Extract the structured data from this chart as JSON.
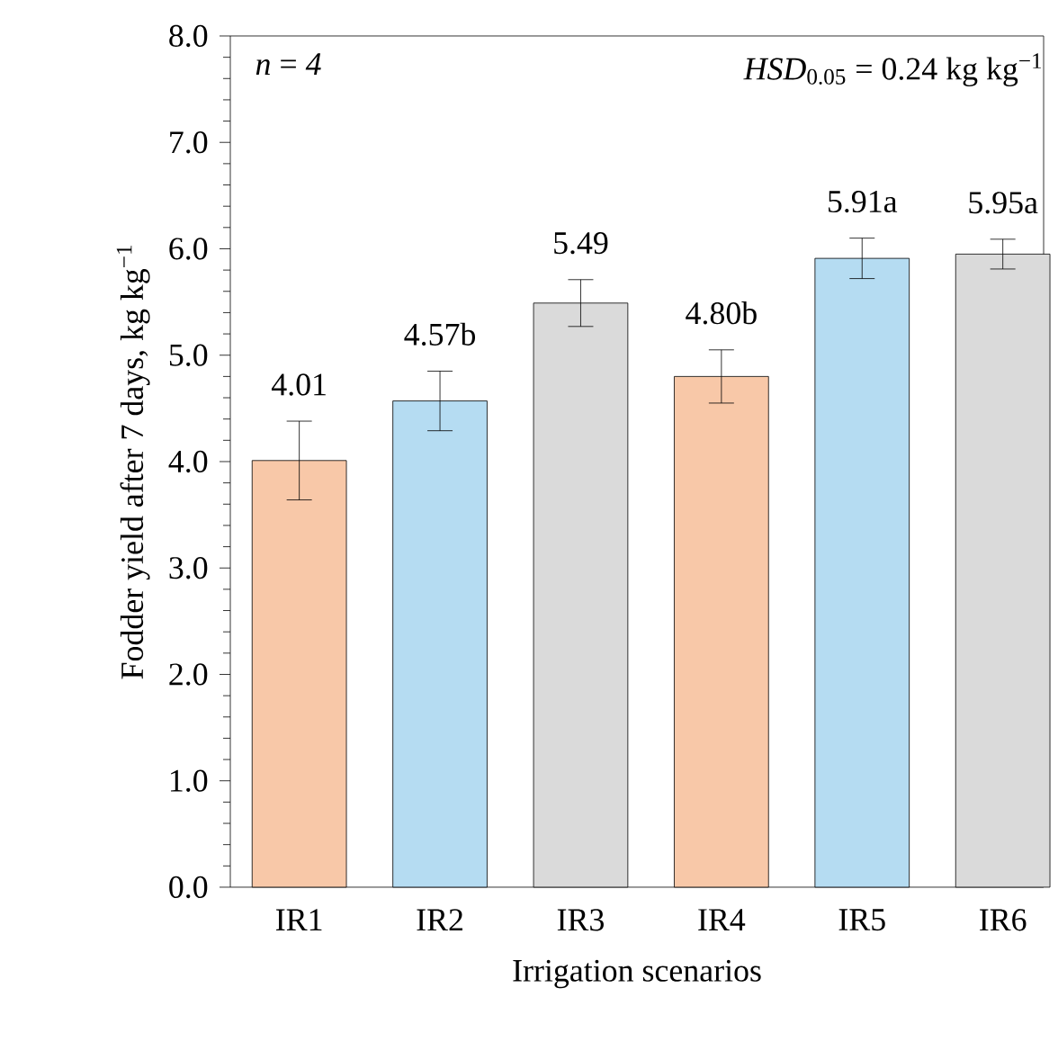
{
  "chart_data": {
    "type": "bar",
    "xlabel": "Irrigation scenarios",
    "ylabel": "Fodder yield after 7 days, kg kg$^{−1}$",
    "categories": [
      "IR1",
      "IR2",
      "IR3",
      "IR4",
      "IR5",
      "IR6"
    ],
    "values": [
      4.01,
      4.57,
      5.49,
      4.8,
      5.91,
      5.95
    ],
    "errors": [
      0.37,
      0.28,
      0.22,
      0.25,
      0.19,
      0.14
    ],
    "value_labels": [
      "4.01",
      "4.57b",
      "5.49",
      "4.80b",
      "5.91a",
      "5.95a"
    ],
    "colors": [
      "#f8c8a8",
      "#b5dcf2",
      "#dadada",
      "#f8c8a8",
      "#b5dcf2",
      "#dadada"
    ],
    "ylim": [
      0,
      8
    ],
    "yticks": [
      {
        "value": 0,
        "label": "0.0"
      },
      {
        "value": 1,
        "label": "1.0"
      },
      {
        "value": 2,
        "label": "2.0"
      },
      {
        "value": 3,
        "label": "3.0"
      },
      {
        "value": 4,
        "label": "4.0"
      },
      {
        "value": 5,
        "label": "5.0"
      },
      {
        "value": 6,
        "label": "6.0"
      },
      {
        "value": 7,
        "label": "7.0"
      },
      {
        "value": 8,
        "label": "8.0"
      }
    ],
    "annotations": [
      "*n* = *4*",
      "*HSD*$_{0.05}$ = 0.24 kg kg$^{−1}$"
    ],
    "grid": false
  }
}
